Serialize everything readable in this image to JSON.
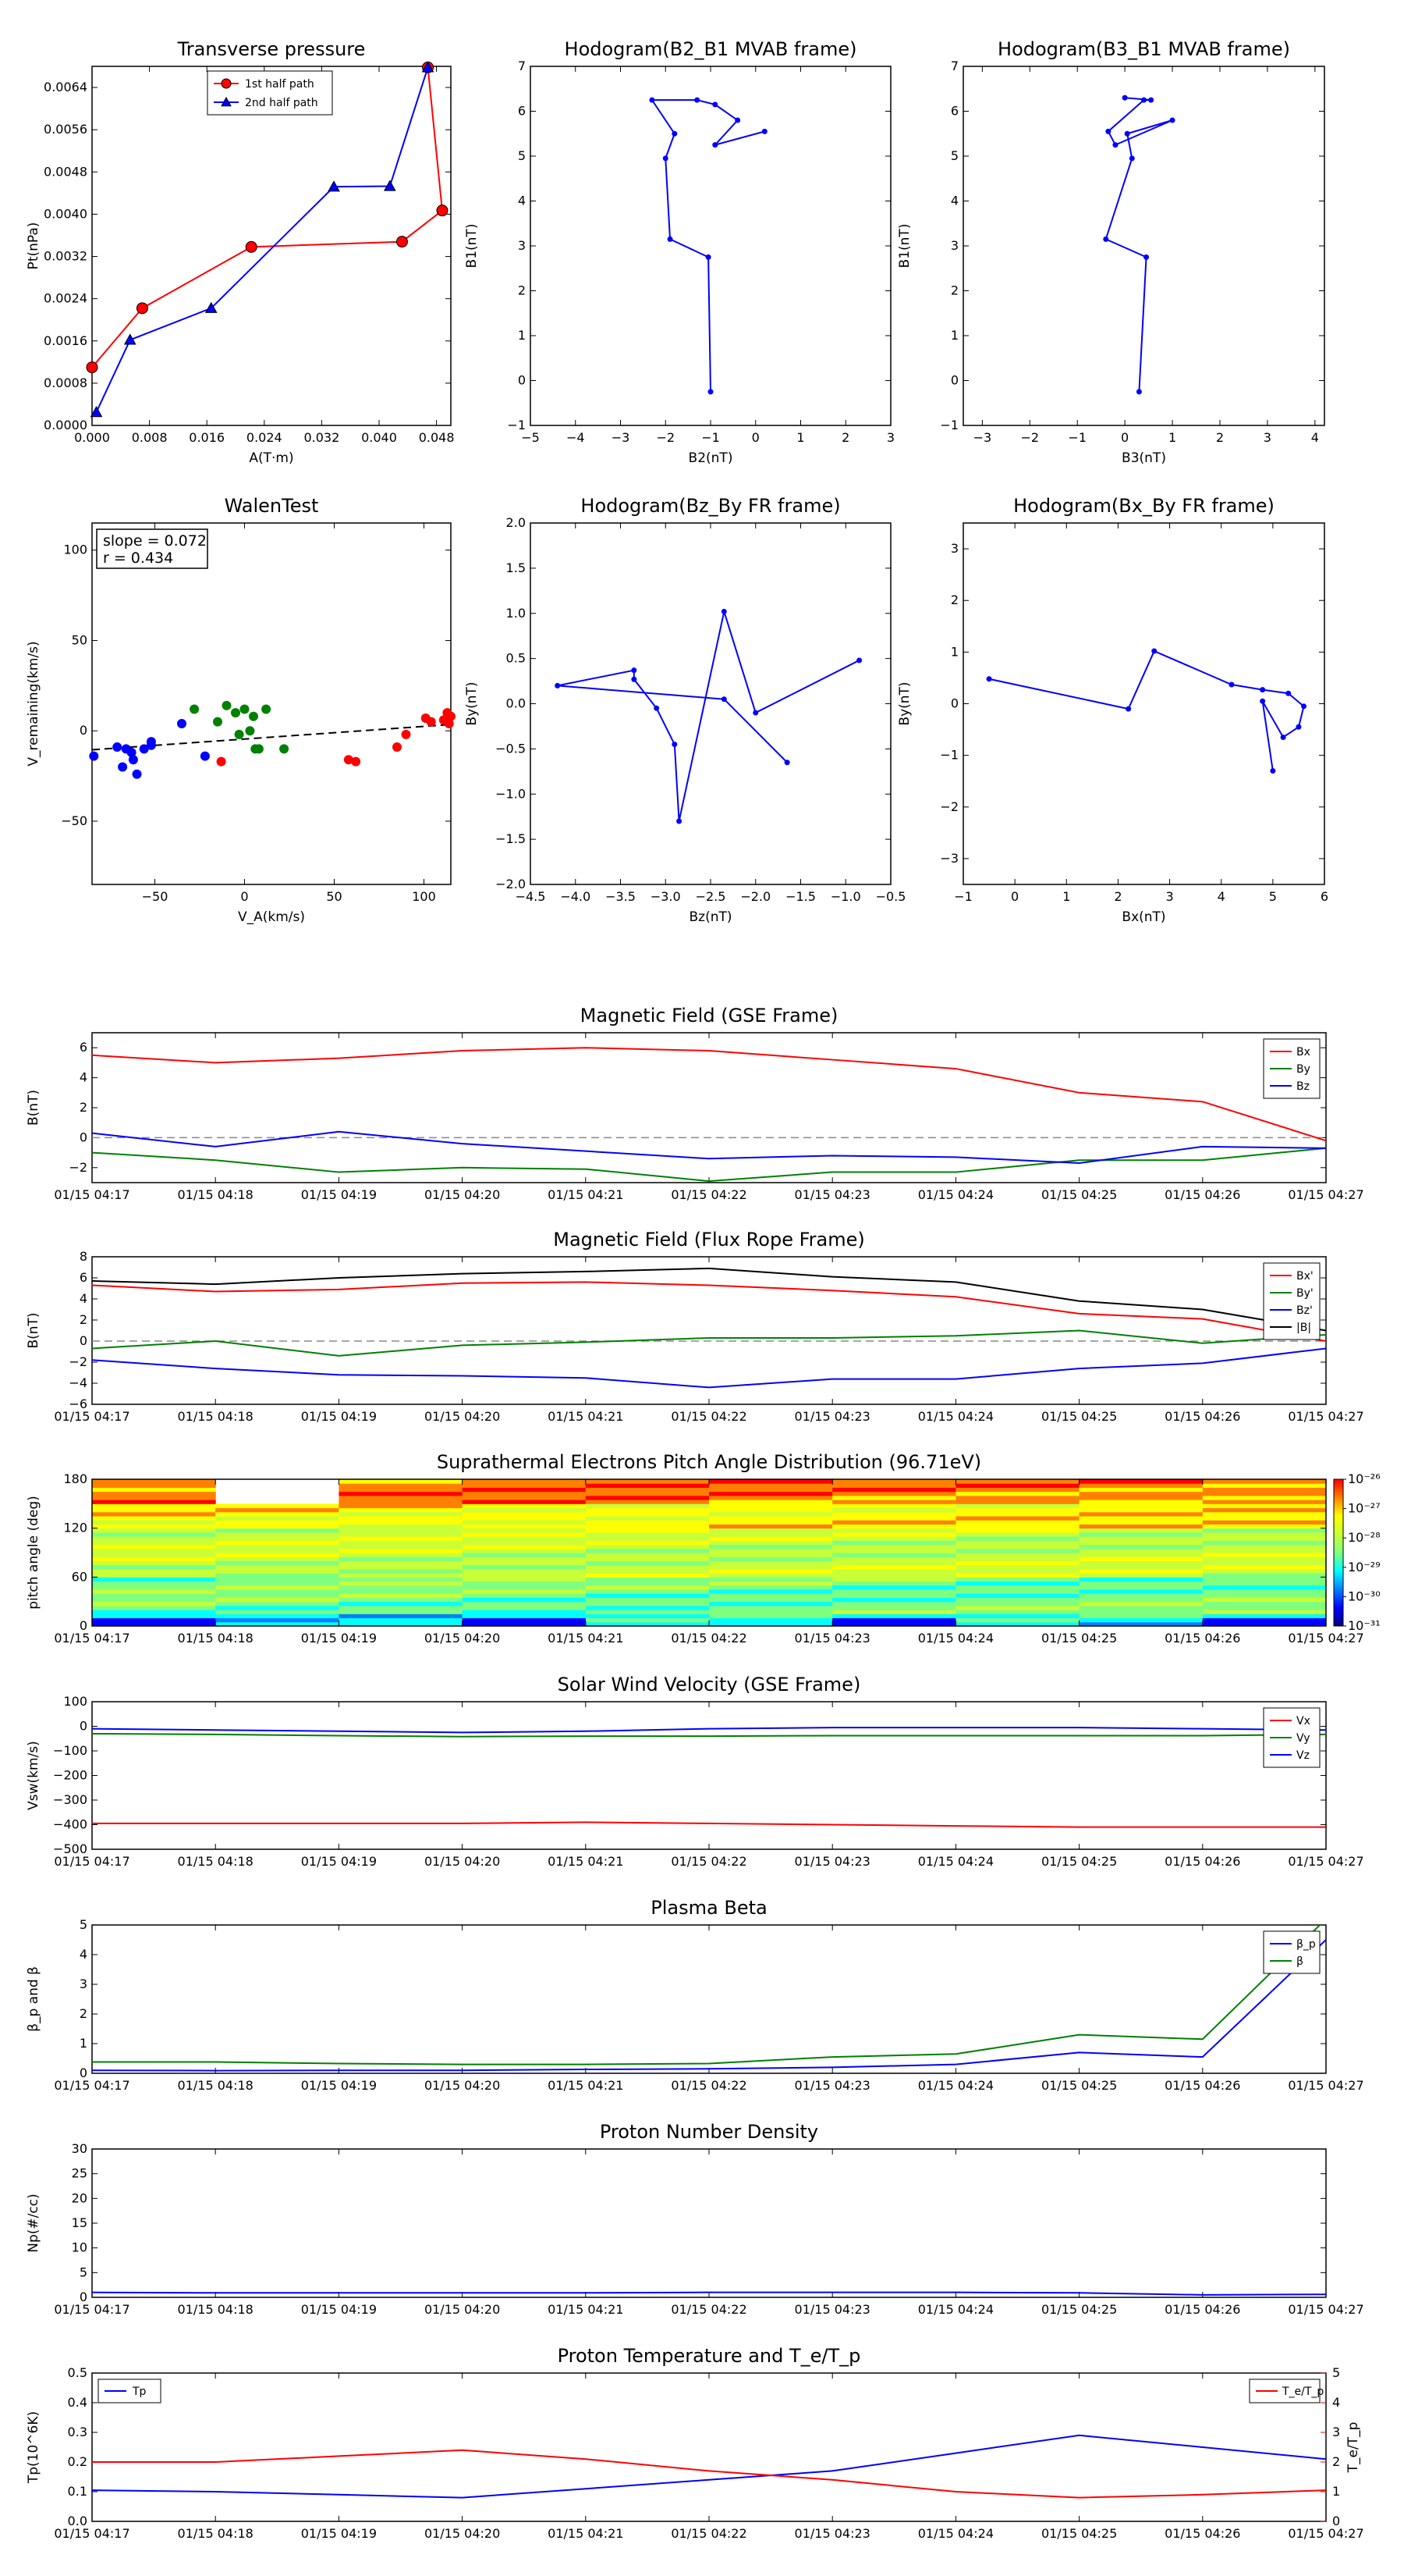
{
  "chart_data": [
    {
      "id": "transverse-pressure",
      "type": "line",
      "title": "Transverse pressure",
      "xlabel": "A(T·m)",
      "ylabel": "Pt(nPa)",
      "xlim": [
        0,
        0.05
      ],
      "ylim": [
        0,
        0.0068
      ],
      "xticks": [
        0.0,
        0.008,
        0.016,
        0.024,
        0.032,
        0.04,
        0.048
      ],
      "xtick_labels": [
        "0.000",
        "0.008",
        "0.016",
        "0.024",
        "0.032",
        "0.040",
        "0.048"
      ],
      "yticks": [
        0,
        0.0008,
        0.0016,
        0.0024,
        0.0032,
        0.004,
        0.0048,
        0.0056,
        0.0064
      ],
      "ytick_labels": [
        "0.0000",
        "0.0008",
        "0.0016",
        "0.0024",
        "0.0032",
        "0.0040",
        "0.0048",
        "0.0056",
        "0.0064"
      ],
      "legend": "upper-center",
      "series": [
        {
          "name": "1st half path",
          "color": "#ff0000",
          "marker": "circle",
          "x": [
            0.0,
            0.007,
            0.0222,
            0.0432,
            0.0488,
            0.0468
          ],
          "y": [
            0.0011,
            0.00222,
            0.00338,
            0.00348,
            0.00407,
            0.00678
          ]
        },
        {
          "name": "2nd half path",
          "color": "#0000ff",
          "marker": "triangle",
          "x": [
            0.0006,
            0.0053,
            0.0166,
            0.0337,
            0.0415,
            0.0468
          ],
          "y": [
            0.00025,
            0.00162,
            0.00222,
            0.00452,
            0.00453,
            0.00678
          ]
        }
      ]
    },
    {
      "id": "hodogram-b2-b1",
      "type": "line",
      "title": "Hodogram(B2_B1 MVAB frame)",
      "xlabel": "B2(nT)",
      "ylabel": "B1(nT)",
      "xlim": [
        -5,
        3
      ],
      "ylim": [
        -1,
        7
      ],
      "xticks": [
        -5,
        -4,
        -3,
        -2,
        -1,
        0,
        1,
        2,
        3
      ],
      "xtick_labels": [
        "−5",
        "−4",
        "−3",
        "−2",
        "−1",
        "0",
        "1",
        "2",
        "3"
      ],
      "yticks": [
        -1,
        0,
        1,
        2,
        3,
        4,
        5,
        6,
        7
      ],
      "ytick_labels": [
        "−1",
        "0",
        "1",
        "2",
        "3",
        "4",
        "5",
        "6",
        "7"
      ],
      "series": [
        {
          "color": "#0000ff",
          "x": [
            -1.0,
            -1.05,
            -1.9,
            -2.0,
            -1.8,
            -2.3,
            -1.3,
            -0.9,
            -0.4,
            -0.9,
            0.2
          ],
          "y": [
            -0.25,
            2.75,
            3.15,
            4.95,
            5.5,
            6.25,
            6.25,
            6.15,
            5.8,
            5.25,
            5.55
          ]
        }
      ]
    },
    {
      "id": "hodogram-b3-b1",
      "type": "line",
      "title": "Hodogram(B3_B1 MVAB frame)",
      "xlabel": "B3(nT)",
      "ylabel": "B1(nT)",
      "xlim": [
        -3.4,
        4.2
      ],
      "ylim": [
        -1,
        7
      ],
      "xticks": [
        -3,
        -2,
        -1,
        0,
        1,
        2,
        3,
        4
      ],
      "xtick_labels": [
        "−3",
        "−2",
        "−1",
        "0",
        "1",
        "2",
        "3",
        "4"
      ],
      "yticks": [
        -1,
        0,
        1,
        2,
        3,
        4,
        5,
        6,
        7
      ],
      "ytick_labels": [
        "−1",
        "0",
        "1",
        "2",
        "3",
        "4",
        "5",
        "6",
        "7"
      ],
      "series": [
        {
          "color": "#0000ff",
          "x": [
            0.3,
            0.45,
            -0.4,
            0.15,
            0.05,
            1.0,
            -0.2,
            -0.35,
            0.4,
            0.55,
            0.0
          ],
          "y": [
            -0.25,
            2.75,
            3.15,
            4.95,
            5.5,
            5.8,
            5.25,
            5.55,
            6.25,
            6.25,
            6.3
          ]
        }
      ]
    },
    {
      "id": "walen-test",
      "type": "scatter",
      "title": "WalenTest",
      "xlabel": "V_A(km/s)",
      "ylabel": "V_remaining(km/s)",
      "xlim": [
        -85,
        115
      ],
      "ylim": [
        -85,
        115
      ],
      "xticks": [
        -50,
        0,
        50,
        100
      ],
      "xtick_labels": [
        "−50",
        "0",
        "50",
        "100"
      ],
      "yticks": [
        -50,
        0,
        50,
        100
      ],
      "ytick_labels": [
        "−50",
        "0",
        "50",
        "100"
      ],
      "annotation": [
        "slope = 0.072",
        "r = 0.434"
      ],
      "fit": {
        "x": [
          -85,
          115
        ],
        "y": [
          -10.5,
          3.5
        ],
        "color": "#000000"
      },
      "series": [
        {
          "color": "#0000ff",
          "x": [
            -84,
            -71,
            -66,
            -68,
            -63,
            -62,
            -60,
            -56,
            -52,
            -52,
            -35,
            -22
          ],
          "y": [
            -14,
            -9,
            -10,
            -20,
            -12,
            -16,
            -24,
            -10,
            -6,
            -8,
            4,
            -14
          ]
        },
        {
          "color": "#008000",
          "x": [
            -28,
            -15,
            -10,
            -5,
            -3,
            0,
            3,
            5,
            6,
            8,
            12,
            22
          ],
          "y": [
            12,
            5,
            14,
            10,
            -2,
            12,
            0,
            8,
            -10,
            -10,
            12,
            -10
          ]
        },
        {
          "color": "#ff0000",
          "x": [
            -13,
            58,
            62,
            85,
            90,
            101,
            104,
            111,
            113,
            114,
            115
          ],
          "y": [
            -17,
            -16,
            -17,
            -9,
            -2,
            7,
            5,
            6,
            10,
            4,
            8
          ]
        }
      ]
    },
    {
      "id": "hodogram-bz-by",
      "type": "line",
      "title": "Hodogram(Bz_By FR frame)",
      "xlabel": "Bz(nT)",
      "ylabel": "By(nT)",
      "xlim": [
        -4.5,
        -0.5
      ],
      "ylim": [
        -2.0,
        2.0
      ],
      "xticks": [
        -4.5,
        -4.0,
        -3.5,
        -3.0,
        -2.5,
        -2.0,
        -1.5,
        -1.0,
        -0.5
      ],
      "xtick_labels": [
        "−4.5",
        "−4.0",
        "−3.5",
        "−3.0",
        "−2.5",
        "−2.0",
        "−1.5",
        "−1.0",
        "−0.5"
      ],
      "yticks": [
        -2.0,
        -1.5,
        -1.0,
        -0.5,
        0.0,
        0.5,
        1.0,
        1.5,
        2.0
      ],
      "ytick_labels": [
        "−2.0",
        "−1.5",
        "−1.0",
        "−0.5",
        "0.0",
        "0.5",
        "1.0",
        "1.5",
        "2.0"
      ],
      "series": [
        {
          "color": "#0000ff",
          "x": [
            -0.85,
            -2.0,
            -2.35,
            -2.85,
            -2.9,
            -3.1,
            -3.35,
            -3.35,
            -4.2,
            -2.35,
            -1.65
          ],
          "y": [
            0.48,
            -0.1,
            1.02,
            -1.3,
            -0.45,
            -0.05,
            0.27,
            0.37,
            0.2,
            0.05,
            -0.65
          ]
        }
      ]
    },
    {
      "id": "hodogram-bx-by",
      "type": "line",
      "title": "Hodogram(Bx_By FR frame)",
      "xlabel": "Bx(nT)",
      "ylabel": "By(nT)",
      "xlim": [
        -1,
        6
      ],
      "ylim": [
        -3.5,
        3.5
      ],
      "xticks": [
        -1,
        0,
        1,
        2,
        3,
        4,
        5,
        6
      ],
      "xtick_labels": [
        "−1",
        "0",
        "1",
        "2",
        "3",
        "4",
        "5",
        "6"
      ],
      "yticks": [
        -3,
        -2,
        -1,
        0,
        1,
        2,
        3
      ],
      "ytick_labels": [
        "−3",
        "−2",
        "−1",
        "0",
        "1",
        "2",
        "3"
      ],
      "series": [
        {
          "color": "#0000ff",
          "x": [
            -0.5,
            2.2,
            2.7,
            4.2,
            4.8,
            5.3,
            5.6,
            5.5,
            5.2,
            4.8,
            5.0
          ],
          "y": [
            0.48,
            -0.1,
            1.02,
            0.37,
            0.27,
            0.2,
            -0.05,
            -0.45,
            -0.65,
            0.05,
            -1.3
          ]
        }
      ]
    },
    {
      "id": "magnetic-field-gse",
      "type": "line",
      "title": "Magnetic Field (GSE Frame)",
      "ylabel": "B(nT)",
      "ylim": [
        -3,
        7
      ],
      "yticks": [
        -2,
        0,
        2,
        4,
        6
      ],
      "ytick_labels": [
        "−2",
        "0",
        "2",
        "4",
        "6"
      ],
      "zero_line": true,
      "legend": "top-right",
      "series": [
        {
          "name": "Bx",
          "color": "#ff0000",
          "values": [
            5.5,
            5.0,
            5.3,
            5.8,
            6.0,
            5.8,
            5.2,
            4.6,
            3.0,
            2.4,
            -0.2
          ]
        },
        {
          "name": "By",
          "color": "#008000",
          "values": [
            -1.0,
            -1.5,
            -2.3,
            -2.0,
            -2.1,
            -2.9,
            -2.3,
            -2.3,
            -1.5,
            -1.5,
            -0.7
          ]
        },
        {
          "name": "Bz",
          "color": "#0000ff",
          "values": [
            0.3,
            -0.6,
            0.4,
            -0.4,
            -0.9,
            -1.4,
            -1.2,
            -1.3,
            -1.7,
            -0.6,
            -0.7
          ]
        }
      ]
    },
    {
      "id": "magnetic-field-fr",
      "type": "line",
      "title": "Magnetic Field (Flux Rope Frame)",
      "ylabel": "B(nT)",
      "ylim": [
        -6,
        8
      ],
      "yticks": [
        -6,
        -4,
        -2,
        0,
        2,
        4,
        6,
        8
      ],
      "ytick_labels": [
        "−6",
        "−4",
        "−2",
        "0",
        "2",
        "4",
        "6",
        "8"
      ],
      "zero_line": true,
      "legend": "top-right",
      "series": [
        {
          "name": "Bx'",
          "color": "#ff0000",
          "values": [
            5.3,
            4.7,
            4.9,
            5.5,
            5.6,
            5.3,
            4.8,
            4.2,
            2.6,
            2.1,
            0.0
          ]
        },
        {
          "name": "By'",
          "color": "#008000",
          "values": [
            -0.7,
            0.0,
            -1.4,
            -0.4,
            -0.1,
            0.3,
            0.3,
            0.5,
            1.0,
            -0.2,
            0.6
          ]
        },
        {
          "name": "Bz'",
          "color": "#0000ff",
          "values": [
            -1.8,
            -2.6,
            -3.2,
            -3.3,
            -3.5,
            -4.4,
            -3.6,
            -3.6,
            -2.6,
            -2.1,
            -0.7
          ]
        },
        {
          "name": "|B|",
          "color": "#000000",
          "values": [
            5.7,
            5.4,
            6.0,
            6.4,
            6.6,
            6.9,
            6.1,
            5.6,
            3.8,
            3.0,
            1.0
          ]
        }
      ]
    },
    {
      "id": "pitch-angle",
      "type": "heatmap",
      "title": "Suprathermal Electrons Pitch Angle Distribution (96.71eV)",
      "ylabel": "pitch angle (deg)",
      "ylim": [
        0,
        180
      ],
      "yticks": [
        0,
        60,
        120,
        180
      ],
      "ytick_labels": [
        "0",
        "60",
        "120",
        "180"
      ],
      "colorbar_ticks": [
        "10⁻²⁶",
        "10⁻²⁷",
        "10⁻²⁸",
        "10⁻²⁹",
        "10⁻³⁰",
        "10⁻³¹"
      ]
    },
    {
      "id": "solar-wind-velocity",
      "type": "line",
      "title": "Solar Wind Velocity (GSE Frame)",
      "ylabel": "Vsw(km/s)",
      "ylim": [
        -500,
        100
      ],
      "yticks": [
        -500,
        -400,
        -300,
        -200,
        -100,
        0,
        100
      ],
      "ytick_labels": [
        "−500",
        "−400",
        "−300",
        "−200",
        "−100",
        "0",
        "100"
      ],
      "legend": "top-right",
      "series": [
        {
          "name": "Vx",
          "color": "#ff0000",
          "values": [
            -395,
            -395,
            -395,
            -395,
            -390,
            -395,
            -400,
            -405,
            -410,
            -410,
            -410
          ]
        },
        {
          "name": "Vy",
          "color": "#008000",
          "values": [
            -30,
            -33,
            -38,
            -42,
            -40,
            -40,
            -38,
            -38,
            -38,
            -38,
            -33
          ]
        },
        {
          "name": "Vz",
          "color": "#0000ff",
          "values": [
            -10,
            -15,
            -20,
            -25,
            -20,
            -10,
            -5,
            -5,
            -5,
            -10,
            -15
          ]
        }
      ]
    },
    {
      "id": "plasma-beta",
      "type": "line",
      "title": "Plasma Beta",
      "ylabel": "β_p and β",
      "ylim": [
        0,
        5
      ],
      "yticks": [
        0,
        1,
        2,
        3,
        4,
        5
      ],
      "ytick_labels": [
        "0",
        "1",
        "2",
        "3",
        "4",
        "5"
      ],
      "legend": "top-right",
      "series": [
        {
          "name": "β_p",
          "color": "#0000ff",
          "values": [
            0.1,
            0.09,
            0.1,
            0.1,
            0.13,
            0.15,
            0.2,
            0.3,
            0.7,
            0.55,
            4.5
          ]
        },
        {
          "name": "β",
          "color": "#008000",
          "values": [
            0.38,
            0.38,
            0.33,
            0.3,
            0.3,
            0.33,
            0.55,
            0.65,
            1.3,
            1.15,
            5.2
          ]
        }
      ]
    },
    {
      "id": "proton-density",
      "type": "line",
      "title": "Proton Number Density",
      "ylabel": "Np(#/cc)",
      "ylim": [
        0,
        30
      ],
      "yticks": [
        0,
        5,
        10,
        15,
        20,
        25,
        30
      ],
      "ytick_labels": [
        "0",
        "5",
        "10",
        "15",
        "20",
        "25",
        "30"
      ],
      "series": [
        {
          "color": "#0000ff",
          "values": [
            1.0,
            0.9,
            0.9,
            0.9,
            0.9,
            1.0,
            1.0,
            1.0,
            0.9,
            0.5,
            0.6
          ]
        }
      ]
    },
    {
      "id": "proton-temperature",
      "type": "line",
      "title": "Proton Temperature and T_e/T_p",
      "ylabel": "Tp(10^6K)",
      "ylabel_right": "T_e/T_p",
      "ylim": [
        0,
        0.5
      ],
      "yticks": [
        0,
        0.1,
        0.2,
        0.3,
        0.4,
        0.5
      ],
      "ytick_labels": [
        "0.0",
        "0.1",
        "0.2",
        "0.3",
        "0.4",
        "0.5"
      ],
      "ylim_right": [
        0,
        5
      ],
      "yticks_right": [
        0,
        1,
        2,
        3,
        4,
        5
      ],
      "ytick_labels_right": [
        "0",
        "1",
        "2",
        "3",
        "4",
        "5"
      ],
      "series": [
        {
          "name": "Tp",
          "color": "#0000ff",
          "axis": "left",
          "values": [
            0.105,
            0.1,
            0.09,
            0.08,
            0.11,
            0.14,
            0.17,
            0.23,
            0.29,
            0.25,
            0.21
          ]
        },
        {
          "name": "T_e/T_p",
          "color": "#ff0000",
          "axis": "right",
          "values": [
            2.0,
            2.0,
            2.2,
            2.4,
            2.1,
            1.7,
            1.4,
            1.0,
            0.8,
            0.9,
            1.05
          ]
        }
      ]
    }
  ],
  "time_axis": {
    "labels": [
      "01/15 04:17",
      "01/15 04:18",
      "01/15 04:19",
      "01/15 04:20",
      "01/15 04:21",
      "01/15 04:22",
      "01/15 04:23",
      "01/15 04:24",
      "01/15 04:25",
      "01/15 04:26",
      "01/15 04:27"
    ]
  }
}
